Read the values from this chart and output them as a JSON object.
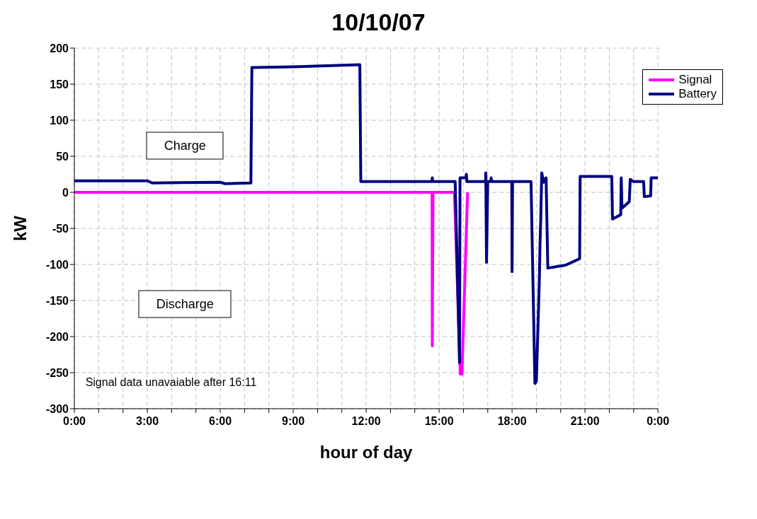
{
  "chart_data": {
    "type": "line",
    "title": "10/10/07",
    "xlabel": "hour of day",
    "ylabel": "kW",
    "xlim": [
      0,
      24
    ],
    "xticks": [
      {
        "value": 0,
        "label": "0:00"
      },
      {
        "value": 1,
        "label": null
      },
      {
        "value": 2,
        "label": null
      },
      {
        "value": 3,
        "label": "3:00"
      },
      {
        "value": 4,
        "label": null
      },
      {
        "value": 5,
        "label": null
      },
      {
        "value": 6,
        "label": "6:00"
      },
      {
        "value": 7,
        "label": null
      },
      {
        "value": 8,
        "label": null
      },
      {
        "value": 9,
        "label": "9:00"
      },
      {
        "value": 10,
        "label": null
      },
      {
        "value": 11,
        "label": null
      },
      {
        "value": 12,
        "label": "12:00"
      },
      {
        "value": 13,
        "label": null
      },
      {
        "value": 14,
        "label": null
      },
      {
        "value": 15,
        "label": "15:00"
      },
      {
        "value": 16,
        "label": null
      },
      {
        "value": 17,
        "label": null
      },
      {
        "value": 18,
        "label": "18:00"
      },
      {
        "value": 19,
        "label": null
      },
      {
        "value": 20,
        "label": null
      },
      {
        "value": 21,
        "label": "21:00"
      },
      {
        "value": 22,
        "label": null
      },
      {
        "value": 23,
        "label": null
      },
      {
        "value": 24,
        "label": "0:00"
      }
    ],
    "ylim": [
      -300,
      200
    ],
    "yticks": [
      -300,
      -250,
      -200,
      -150,
      -100,
      -50,
      0,
      50,
      100,
      150,
      200
    ],
    "grid": true,
    "legend": "top right",
    "marker": "none",
    "line_style": "solid",
    "annotations": [
      "Charge",
      "Discharge",
      "Signal data unavaiable after 16:11"
    ],
    "series": [
      {
        "name": "Signal",
        "color": "#ff00ff",
        "x": [
          0,
          14.71,
          14.72,
          14.75,
          15.63,
          15.87,
          15.94,
          16.17
        ],
        "values": [
          0,
          0,
          -213,
          0,
          0,
          -252,
          -252,
          0
        ]
      },
      {
        "name": "Battery",
        "color": "#000080",
        "x": [
          0,
          3,
          3.2,
          6,
          6.2,
          7.24,
          7.26,
          7.3,
          9,
          11.74,
          11.78,
          14.7,
          14.72,
          14.74,
          15.66,
          15.84,
          15.86,
          16.1,
          16.12,
          16.14,
          16.91,
          16.92,
          16.95,
          17.0,
          17.12,
          17.14,
          17.16,
          17.99,
          18.0,
          18.02,
          18.78,
          18.94,
          19.0,
          19.12,
          19.15,
          19.18,
          19.22,
          19.3,
          19.4,
          19.47,
          20.2,
          20.78,
          20.8,
          22.1,
          22.13,
          22.47,
          22.49,
          22.52,
          22.82,
          22.86,
          22.98,
          23.41,
          23.44,
          23.7,
          23.72,
          24
        ],
        "values": [
          16,
          16,
          13,
          14,
          12,
          13,
          13,
          173,
          174,
          177,
          15,
          15,
          20,
          15,
          15,
          -236,
          20,
          20,
          25,
          15,
          15,
          27,
          -97,
          15,
          15,
          20,
          15,
          15,
          -110,
          15,
          15,
          -265,
          -262,
          -124,
          -71,
          -37,
          27,
          14,
          20,
          -105,
          -101,
          -92,
          22,
          22,
          -37,
          -31,
          20,
          -22,
          -13,
          18,
          15,
          15,
          -6,
          -5,
          20,
          20
        ]
      }
    ]
  }
}
